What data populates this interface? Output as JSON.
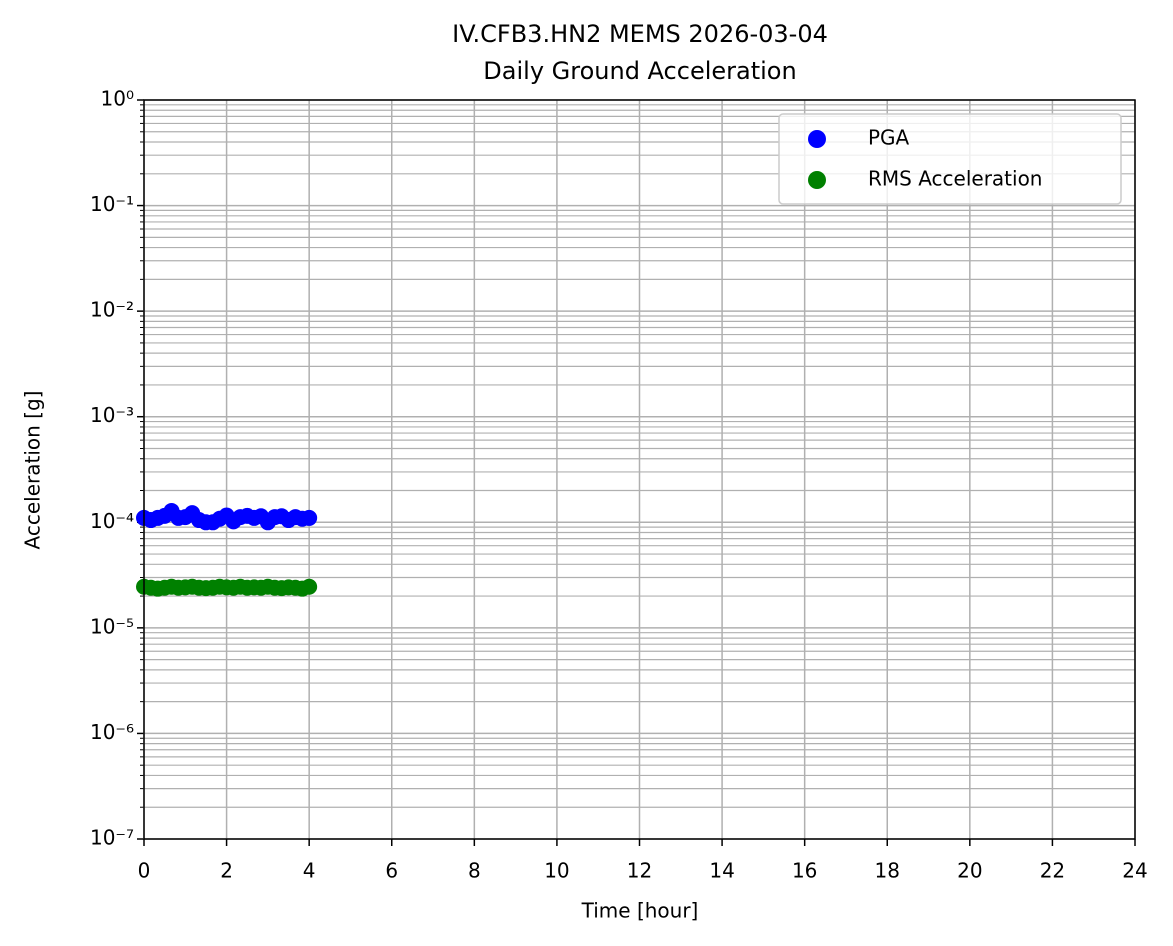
{
  "chart_data": {
    "type": "scatter",
    "title": [
      "IV.CFB3.HN2 MEMS 2026-03-04",
      "Daily Ground Acceleration"
    ],
    "xlabel": "Time [hour]",
    "ylabel": "Acceleration [g]",
    "log_y": true,
    "grid": true,
    "minor_grid": true,
    "legend": "upper right",
    "xlim": [
      0,
      24
    ],
    "xticks": [
      0,
      2,
      4,
      6,
      8,
      10,
      12,
      14,
      16,
      18,
      20,
      22,
      24
    ],
    "ylim": [
      1e-07,
      1
    ],
    "yticks": [
      {
        "value": 1e-07,
        "label": "10⁻⁷"
      },
      {
        "value": 1e-06,
        "label": "10⁻⁶"
      },
      {
        "value": 1e-05,
        "label": "10⁻⁵"
      },
      {
        "value": 0.0001,
        "label": "10⁻⁴"
      },
      {
        "value": 0.001,
        "label": "10⁻³"
      },
      {
        "value": 0.01,
        "label": "10⁻²"
      },
      {
        "value": 0.1,
        "label": "10⁻¹"
      },
      {
        "value": 1,
        "label": "10⁰"
      }
    ],
    "x": [
      0,
      0.167,
      0.333,
      0.5,
      0.667,
      0.833,
      1,
      1.167,
      1.333,
      1.5,
      1.667,
      1.833,
      2,
      2.167,
      2.333,
      2.5,
      2.667,
      2.833,
      3,
      3.167,
      3.333,
      3.5,
      3.667,
      3.833,
      4
    ],
    "series": [
      {
        "name": "PGA",
        "color": "#0000ff",
        "values": [
          0.00011,
          0.000105,
          0.00011,
          0.000115,
          0.000128,
          0.00011,
          0.000112,
          0.000122,
          0.000105,
          0.0001,
          0.0001,
          0.000108,
          0.000116,
          0.000102,
          0.000112,
          0.000115,
          0.00011,
          0.000114,
          0.0001,
          0.000112,
          0.000114,
          0.000105,
          0.000112,
          0.000108,
          0.00011
        ]
      },
      {
        "name": "RMS Acceleration",
        "color": "#008000",
        "values": [
          2.45e-05,
          2.4e-05,
          2.35e-05,
          2.4e-05,
          2.45e-05,
          2.4e-05,
          2.42e-05,
          2.45e-05,
          2.4e-05,
          2.38e-05,
          2.4e-05,
          2.45e-05,
          2.42e-05,
          2.4e-05,
          2.45e-05,
          2.4e-05,
          2.42e-05,
          2.4e-05,
          2.45e-05,
          2.4e-05,
          2.38e-05,
          2.42e-05,
          2.4e-05,
          2.35e-05,
          2.45e-05
        ]
      }
    ]
  }
}
